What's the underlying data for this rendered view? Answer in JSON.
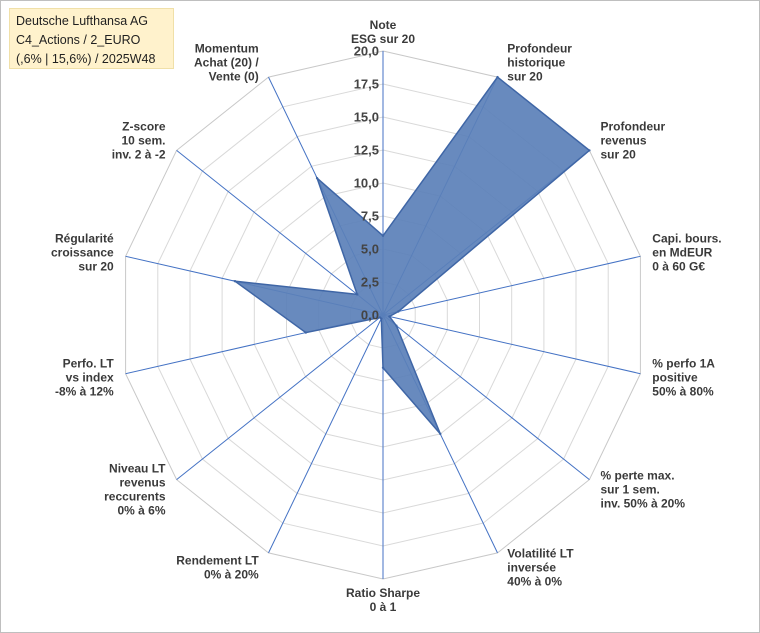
{
  "title_box": {
    "line1": "Deutsche Lufthansa AG",
    "line2": "C4_Actions / 2_EURO",
    "line3": "(,6% | 15,6%) / 2025W48"
  },
  "chart_data": {
    "type": "radar",
    "title": "Deutsche Lufthansa AG",
    "rmin": 0,
    "rmax": 20,
    "ticks": [
      0,
      2.5,
      5,
      7.5,
      10,
      12.5,
      15,
      17.5,
      20
    ],
    "tick_labels": [
      "0,0",
      "2,5",
      "5,0",
      "7,5",
      "10,0",
      "12,5",
      "15,0",
      "17,5",
      "20,0"
    ],
    "axes": [
      {
        "label": [
          "Note",
          "ESG sur 20"
        ],
        "value": 6
      },
      {
        "label": [
          "Profondeur",
          "historique",
          "sur 20"
        ],
        "value": 20
      },
      {
        "label": [
          "Profondeur",
          "revenus",
          "sur 20"
        ],
        "value": 20
      },
      {
        "label": [
          "Capi. bours.",
          "en MdEUR",
          "0 à 60 G€"
        ],
        "value": 1.2
      },
      {
        "label": [
          "% perfo 1A",
          "positive",
          "50% à 80%"
        ],
        "value": 0.5
      },
      {
        "label": [
          "% perte max.",
          "sur 1 sem.",
          "inv. 50% à 20%"
        ],
        "value": 1.3
      },
      {
        "label": [
          "Volatilité LT",
          "inversée",
          "40% à 0%"
        ],
        "value": 10
      },
      {
        "label": [
          "Ratio Sharpe",
          "0 à 1"
        ],
        "value": 4
      },
      {
        "label": [
          "Rendement LT",
          "0% à 20%"
        ],
        "value": 0.3
      },
      {
        "label": [
          "Niveau LT",
          "revenus",
          "reccurents",
          "0% à 6%"
        ],
        "value": 0.3
      },
      {
        "label": [
          "Perfo. LT",
          "vs index",
          "-8% à 12%"
        ],
        "value": 6
      },
      {
        "label": [
          "Régularité",
          "croissance",
          "sur 20"
        ],
        "value": 11.5
      },
      {
        "label": [
          "Z-score",
          "10 sem.",
          "inv. 2 à -2"
        ],
        "value": 2.5
      },
      {
        "label": [
          "Momentum",
          "Achat (20) /",
          "Vente (0)"
        ],
        "value": 11.5
      }
    ],
    "colors": {
      "fill": "#5b80b8",
      "stroke": "#3f66a6",
      "grid": "#d9d9d9",
      "spoke": "#4472c4"
    }
  }
}
